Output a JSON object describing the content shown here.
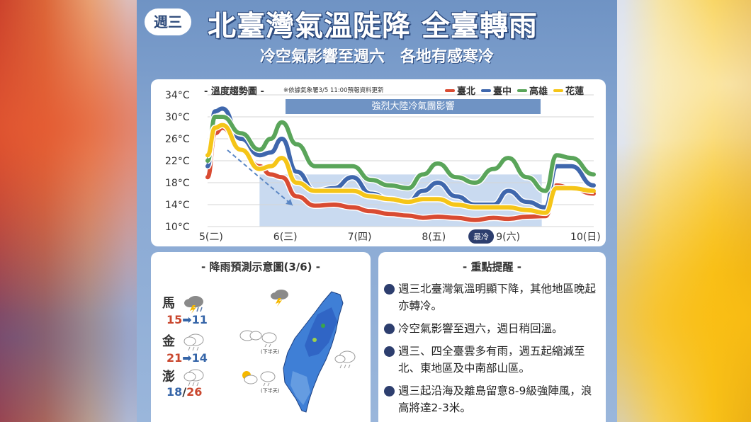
{
  "header": {
    "day": "週三",
    "title": "北臺灣氣溫陡降 全臺轉雨",
    "subtitle": "冷空氣影響至週六　各地有感寒冷"
  },
  "chart_section": {
    "heading": "- 溫度趨勢圖 -",
    "note": "※依據氣象署3/5 11:00預報資料更新",
    "banner": "強烈大陸冷氣團影響",
    "coldest_label": "最冷"
  },
  "chart_data": {
    "type": "line",
    "title": "溫度趨勢圖",
    "x_labels": [
      "5(二)",
      "6(三)",
      "7(四)",
      "8(五)",
      "9(六)",
      "10(日)"
    ],
    "y_ticks": [
      "34°C",
      "30°C",
      "26°C",
      "22°C",
      "18°C",
      "14°C",
      "10°C"
    ],
    "ylim": [
      10,
      34
    ],
    "xlim": [
      0,
      5.2
    ],
    "grid": true,
    "legend_position": "top-right",
    "highlight": {
      "x_range": [
        0.7,
        4.5
      ],
      "y_range": [
        10,
        19.5
      ]
    },
    "series": [
      {
        "name": "臺北",
        "color": "#d94b32",
        "x": [
          0,
          0.1,
          0.2,
          0.45,
          0.7,
          0.85,
          1.0,
          1.2,
          1.45,
          1.7,
          1.95,
          2.2,
          2.45,
          2.7,
          2.9,
          3.1,
          3.35,
          3.6,
          3.85,
          4.05,
          4.3,
          4.55,
          4.7,
          4.9,
          5.2
        ],
        "y": [
          19,
          27,
          28,
          24,
          21,
          19.5,
          19,
          15.5,
          13.8,
          14,
          13.5,
          12.8,
          12.3,
          12,
          11.6,
          11.8,
          11.6,
          11.2,
          11.6,
          11.4,
          11.8,
          11.9,
          17.5,
          17,
          16
        ]
      },
      {
        "name": "臺中",
        "color": "#3f67ad",
        "x": [
          0,
          0.1,
          0.2,
          0.45,
          0.7,
          0.85,
          1.0,
          1.2,
          1.45,
          1.7,
          1.95,
          2.2,
          2.45,
          2.7,
          2.9,
          3.1,
          3.35,
          3.6,
          3.85,
          4.05,
          4.3,
          4.55,
          4.7,
          4.9,
          5.2
        ],
        "y": [
          21,
          31,
          31.5,
          26,
          23,
          23.5,
          26,
          20,
          16.5,
          17,
          19,
          16,
          15,
          14.5,
          16.5,
          18,
          15.5,
          14,
          14,
          16.5,
          14.5,
          13.5,
          21,
          21,
          17.5
        ]
      },
      {
        "name": "高雄",
        "color": "#5aa55a",
        "x": [
          0,
          0.1,
          0.2,
          0.45,
          0.7,
          0.85,
          1.0,
          1.2,
          1.45,
          1.7,
          1.95,
          2.2,
          2.45,
          2.7,
          2.9,
          3.1,
          3.35,
          3.6,
          3.85,
          4.05,
          4.3,
          4.55,
          4.7,
          4.9,
          5.2
        ],
        "y": [
          22,
          30,
          30,
          27,
          24,
          26,
          29,
          25,
          21,
          21,
          21,
          18.5,
          17.5,
          17,
          19.5,
          21.5,
          19,
          18,
          20.5,
          22.5,
          19,
          16.5,
          23,
          22.5,
          19.5
        ]
      },
      {
        "name": "花蓮",
        "color": "#f5c518",
        "x": [
          0,
          0.1,
          0.2,
          0.45,
          0.7,
          0.85,
          1.0,
          1.2,
          1.45,
          1.7,
          1.95,
          2.2,
          2.45,
          2.7,
          2.9,
          3.1,
          3.35,
          3.6,
          3.85,
          4.05,
          4.3,
          4.55,
          4.7,
          4.9,
          5.2
        ],
        "y": [
          23,
          28,
          28.5,
          24,
          20.5,
          21,
          22.5,
          18,
          16.5,
          16.5,
          16.5,
          15.5,
          15,
          14.5,
          15,
          15,
          14,
          13.5,
          13.5,
          13.5,
          13,
          12.5,
          17,
          17,
          16.5
        ]
      }
    ]
  },
  "rain_section": {
    "heading": "- 降雨預測示意圖(3/6) -",
    "islands": [
      {
        "name": "馬",
        "from": "15",
        "to": "11",
        "icon": "thunderstorm-icon"
      },
      {
        "name": "金",
        "from": "21",
        "to": "14",
        "icon": "rain-cloud-icon"
      },
      {
        "name": "澎",
        "from": "18",
        "to": "26",
        "icon": "rain-cloud-icon"
      }
    ],
    "arrow": "➡",
    "slash": "/",
    "afternoon_label": "(下半天)"
  },
  "notes_section": {
    "heading": "- 重點提醒 -",
    "items": [
      "週三北臺灣氣溫明顯下降，其他地區晚起亦轉冷。",
      "冷空氣影響至週六，週日稍回溫。",
      "週三、四全臺雲多有雨，週五起縮減至北、東地區及中南部山區。",
      "週三起沿海及離島留意8-9級強陣風，浪高將達2-3米。"
    ]
  }
}
